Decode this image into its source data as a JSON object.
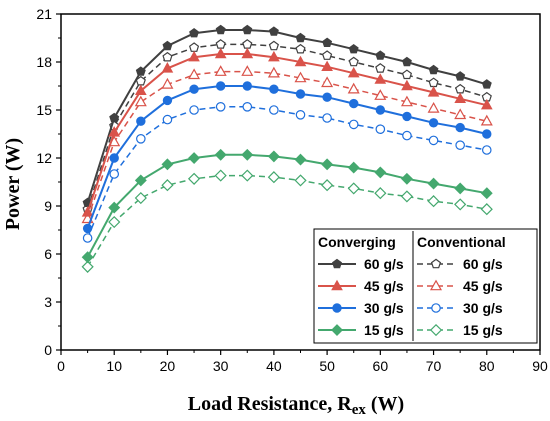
{
  "chart_data": {
    "type": "line",
    "xlabel_main": "Load Resistance, R",
    "xlabel_sub": "ex",
    "xlabel_unit": " (W)",
    "ylabel": "Power (W)",
    "xlim": [
      0,
      90
    ],
    "ylim": [
      0,
      21
    ],
    "xticks": [
      0,
      10,
      20,
      30,
      40,
      50,
      60,
      70,
      80,
      90
    ],
    "yticks": [
      0,
      3,
      6,
      9,
      12,
      15,
      18,
      21
    ],
    "legend_placement": "bottom-right",
    "grid": false,
    "x": [
      5,
      10,
      15,
      20,
      25,
      30,
      35,
      40,
      45,
      50,
      55,
      60,
      65,
      70,
      75,
      80
    ],
    "groups": [
      {
        "title": "Converging",
        "series_indices": [
          0,
          1,
          2,
          3
        ]
      },
      {
        "title": "Conventional",
        "series_indices": [
          4,
          5,
          6,
          7
        ]
      }
    ],
    "series": [
      {
        "name": "60 g/s",
        "group": "Converging",
        "color": "#404040",
        "marker": "pentagon",
        "fill": true,
        "dash": false,
        "values": [
          9.2,
          14.5,
          17.4,
          19.0,
          19.8,
          20.0,
          20.0,
          19.9,
          19.5,
          19.2,
          18.8,
          18.4,
          18.0,
          17.5,
          17.1,
          16.6
        ]
      },
      {
        "name": "45 g/s",
        "group": "Converging",
        "color": "#d9534a",
        "marker": "triangle",
        "fill": true,
        "dash": false,
        "values": [
          8.6,
          13.6,
          16.2,
          17.6,
          18.3,
          18.5,
          18.5,
          18.3,
          18.0,
          17.7,
          17.3,
          16.9,
          16.5,
          16.1,
          15.7,
          15.3
        ]
      },
      {
        "name": "30 g/s",
        "group": "Converging",
        "color": "#1f6fdc",
        "marker": "circle",
        "fill": true,
        "dash": false,
        "values": [
          7.6,
          12.0,
          14.3,
          15.6,
          16.3,
          16.5,
          16.5,
          16.3,
          16.0,
          15.8,
          15.4,
          15.0,
          14.6,
          14.2,
          13.9,
          13.5
        ]
      },
      {
        "name": "15 g/s",
        "group": "Converging",
        "color": "#44a86e",
        "marker": "diamond",
        "fill": true,
        "dash": false,
        "values": [
          5.8,
          8.9,
          10.6,
          11.6,
          12.0,
          12.2,
          12.2,
          12.1,
          11.9,
          11.6,
          11.4,
          11.1,
          10.7,
          10.4,
          10.1,
          9.8
        ]
      },
      {
        "name": "60 g/s",
        "group": "Conventional",
        "color": "#404040",
        "marker": "pentagon",
        "fill": false,
        "dash": true,
        "values": [
          8.8,
          14.0,
          16.8,
          18.3,
          18.9,
          19.1,
          19.1,
          19.0,
          18.8,
          18.4,
          18.0,
          17.6,
          17.2,
          16.7,
          16.3,
          15.8
        ]
      },
      {
        "name": "45 g/s",
        "group": "Conventional",
        "color": "#d9534a",
        "marker": "triangle",
        "fill": false,
        "dash": true,
        "values": [
          8.2,
          13.0,
          15.5,
          16.6,
          17.2,
          17.4,
          17.4,
          17.3,
          17.0,
          16.7,
          16.3,
          15.9,
          15.5,
          15.1,
          14.7,
          14.3
        ]
      },
      {
        "name": "30 g/s",
        "group": "Conventional",
        "color": "#1f6fdc",
        "marker": "circle",
        "fill": false,
        "dash": true,
        "values": [
          7.0,
          11.0,
          13.2,
          14.4,
          15.0,
          15.2,
          15.2,
          15.0,
          14.7,
          14.5,
          14.1,
          13.8,
          13.4,
          13.1,
          12.8,
          12.5
        ]
      },
      {
        "name": "15 g/s",
        "group": "Conventional",
        "color": "#44a86e",
        "marker": "diamond",
        "fill": false,
        "dash": true,
        "values": [
          5.2,
          8.0,
          9.5,
          10.3,
          10.7,
          10.9,
          10.9,
          10.8,
          10.6,
          10.3,
          10.1,
          9.8,
          9.6,
          9.3,
          9.1,
          8.8
        ]
      }
    ]
  }
}
